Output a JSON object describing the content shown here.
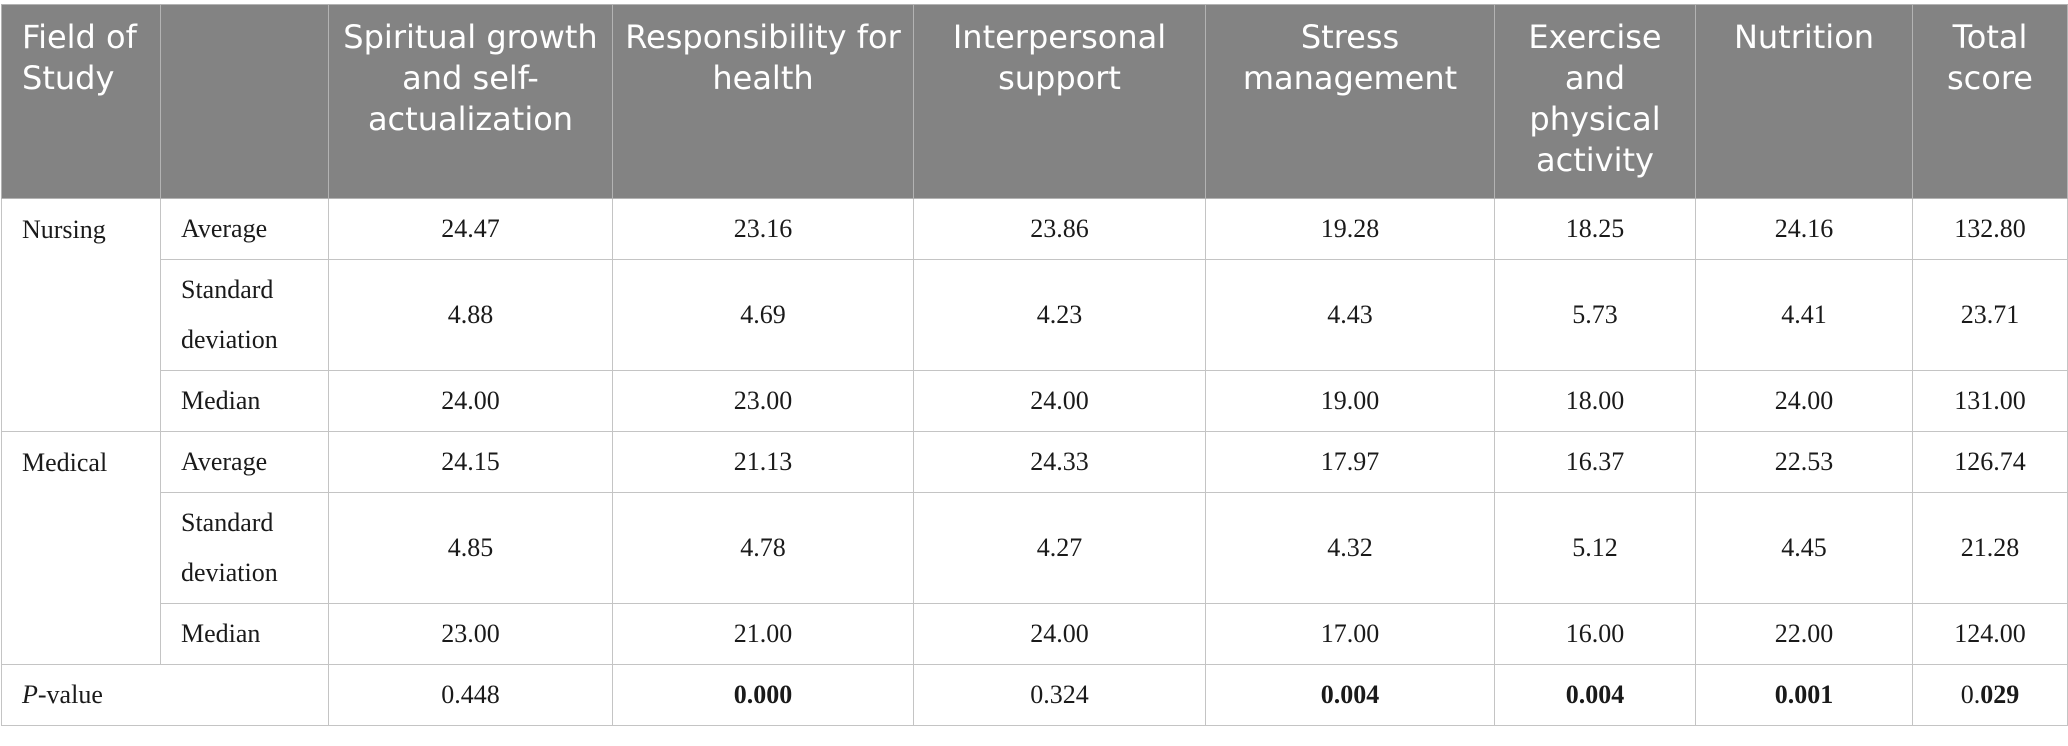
{
  "headers": [
    "Field of Study",
    "",
    "Spiritual growth and self-actualization",
    "Responsibility for health",
    "Interpersonal support",
    "Stress management",
    "Exercise and physical activity",
    "Nutrition",
    "Total score"
  ],
  "groups": [
    {
      "field": "Nursing",
      "rows": [
        {
          "stat": "Average",
          "values": [
            "24.47",
            "23.16",
            "23.86",
            "19.28",
            "18.25",
            "24.16",
            "132.80"
          ]
        },
        {
          "stat": "Standard deviation",
          "values": [
            "4.88",
            "4.69",
            "4.23",
            "4.43",
            "5.73",
            "4.41",
            "23.71"
          ]
        },
        {
          "stat": "Median",
          "values": [
            "24.00",
            "23.00",
            "24.00",
            "19.00",
            "18.00",
            "24.00",
            "131.00"
          ]
        }
      ]
    },
    {
      "field": "Medical",
      "rows": [
        {
          "stat": "Average",
          "values": [
            "24.15",
            "21.13",
            "24.33",
            "17.97",
            "16.37",
            "22.53",
            "126.74"
          ]
        },
        {
          "stat": "Standard deviation",
          "values": [
            "4.85",
            "4.78",
            "4.27",
            "4.32",
            "5.12",
            "4.45",
            "21.28"
          ]
        },
        {
          "stat": "Median",
          "values": [
            "23.00",
            "21.00",
            "24.00",
            "17.00",
            "16.00",
            "22.00",
            "124.00"
          ]
        }
      ]
    }
  ],
  "pvalue": {
    "label_p": "P",
    "label_rest": "-value",
    "values": [
      "0.448",
      "0.000",
      "0.324",
      "0.004",
      "0.004",
      "0.001"
    ],
    "total_prefix": "0.",
    "total_bold": "029"
  }
}
